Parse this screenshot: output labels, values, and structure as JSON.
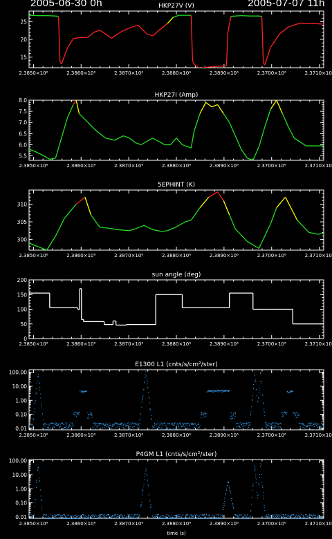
{
  "header": {
    "start_time": "2005-06-30 0h",
    "end_time": "2005-07-07 11h"
  },
  "colors": {
    "background": "#000000",
    "axes": "#ffffff",
    "normal": "#22dd22",
    "warm": "#ffff00",
    "hot": "#ff2222",
    "dots": "#39a8ff"
  },
  "x_axis": {
    "tick_labels": [
      "2.3850×10⁶",
      "2.3860×10⁶",
      "2.3870×10⁶",
      "2.3880×10⁶",
      "2.3890×10⁶",
      "2.3700×10⁶",
      "2.3710×10⁶"
    ],
    "title": "time (s)"
  },
  "chart_data": [
    {
      "type": "line",
      "title": "HKP27V (V)",
      "ylim": [
        12,
        28
      ],
      "yticks": [
        15,
        20,
        25
      ],
      "ytick_labels": [
        "15",
        "20",
        "25"
      ],
      "x": [
        0.0,
        0.03,
        0.06,
        0.09,
        0.1,
        0.105,
        0.11,
        0.13,
        0.15,
        0.17,
        0.2,
        0.22,
        0.24,
        0.26,
        0.28,
        0.3,
        0.32,
        0.35,
        0.37,
        0.4,
        0.42,
        0.44,
        0.47,
        0.49,
        0.51,
        0.53,
        0.55,
        0.555,
        0.56,
        0.58,
        0.61,
        0.64,
        0.66,
        0.67,
        0.675,
        0.685,
        0.72,
        0.75,
        0.78,
        0.79,
        0.795,
        0.8,
        0.82,
        0.85,
        0.88,
        0.92,
        0.96,
        1.0
      ],
      "y": [
        26.8,
        26.7,
        26.7,
        26.6,
        26.5,
        13.8,
        13.0,
        17.5,
        20.2,
        20.5,
        20.6,
        22.0,
        22.6,
        21.5,
        20.3,
        21.5,
        22.5,
        23.5,
        24.0,
        21.5,
        21.0,
        22.5,
        24.5,
        26.3,
        26.8,
        26.8,
        26.8,
        14.0,
        13.0,
        11.8,
        12.2,
        12.4,
        12.5,
        12.6,
        22.0,
        26.5,
        26.7,
        26.6,
        26.6,
        26.5,
        13.5,
        12.8,
        17.8,
        21.5,
        23.5,
        24.6,
        24.5,
        24.3
      ]
    },
    {
      "type": "line",
      "title": "HKP27I (Amp)",
      "ylim": [
        5.3,
        8.0
      ],
      "yticks": [
        5.5,
        6.0,
        6.5,
        7.0,
        7.5,
        8.0
      ],
      "ytick_labels": [
        "5.5",
        "6.0",
        "6.5",
        "7.0",
        "7.5",
        "8.0"
      ],
      "x": [
        0.0,
        0.02,
        0.05,
        0.07,
        0.09,
        0.11,
        0.13,
        0.15,
        0.16,
        0.17,
        0.2,
        0.23,
        0.26,
        0.29,
        0.32,
        0.34,
        0.36,
        0.38,
        0.4,
        0.42,
        0.44,
        0.46,
        0.48,
        0.5,
        0.52,
        0.54,
        0.55,
        0.56,
        0.58,
        0.6,
        0.62,
        0.64,
        0.66,
        0.68,
        0.7,
        0.72,
        0.74,
        0.76,
        0.78,
        0.8,
        0.82,
        0.84,
        0.86,
        0.88,
        0.9,
        0.94,
        0.98,
        1.0
      ],
      "y": [
        5.8,
        5.7,
        5.5,
        5.35,
        5.4,
        6.3,
        7.2,
        7.8,
        8.0,
        7.4,
        7.0,
        6.6,
        6.3,
        6.2,
        6.4,
        6.3,
        6.1,
        6.0,
        6.15,
        6.3,
        6.15,
        6.0,
        6.0,
        6.3,
        6.0,
        5.9,
        5.85,
        6.6,
        7.4,
        7.9,
        7.7,
        7.8,
        7.4,
        7.0,
        6.4,
        5.8,
        5.4,
        5.3,
        5.9,
        6.8,
        7.6,
        8.0,
        7.4,
        6.8,
        6.3,
        5.95,
        5.95,
        5.95
      ]
    },
    {
      "type": "line",
      "title": "5EPHINT (K)",
      "ylim": [
        297,
        314
      ],
      "yticks": [
        300,
        305,
        310
      ],
      "ytick_labels": [
        "300",
        "305",
        "310"
      ],
      "x": [
        0.0,
        0.03,
        0.06,
        0.09,
        0.12,
        0.16,
        0.19,
        0.21,
        0.24,
        0.27,
        0.3,
        0.34,
        0.36,
        0.39,
        0.42,
        0.45,
        0.47,
        0.5,
        0.53,
        0.55,
        0.58,
        0.61,
        0.64,
        0.66,
        0.68,
        0.7,
        0.74,
        0.78,
        0.82,
        0.84,
        0.87,
        0.91,
        0.95,
        0.98,
        1.0
      ],
      "y": [
        299,
        298,
        297,
        301,
        306,
        310,
        312,
        307,
        303.5,
        303.2,
        302.8,
        302.5,
        303.0,
        304.0,
        302.8,
        302.3,
        302.5,
        303.6,
        305.0,
        305.5,
        309.0,
        312.0,
        313.5,
        311.0,
        307.0,
        303.0,
        299.5,
        297.5,
        304.5,
        309.0,
        312.0,
        305.5,
        302.0,
        301.5,
        301.8
      ]
    },
    {
      "type": "line",
      "title": "sun angle (deg)",
      "ylim": [
        0,
        200
      ],
      "yticks": [
        0,
        50,
        100,
        150,
        200
      ],
      "ytick_labels": [
        "0",
        "50",
        "100",
        "150",
        "200"
      ],
      "x": [
        0.0,
        0.07,
        0.07,
        0.165,
        0.165,
        0.172,
        0.172,
        0.178,
        0.178,
        0.185,
        0.185,
        0.255,
        0.255,
        0.285,
        0.285,
        0.295,
        0.295,
        0.33,
        0.33,
        0.43,
        0.43,
        0.52,
        0.52,
        0.58,
        0.58,
        0.68,
        0.68,
        0.76,
        0.76,
        0.82,
        0.82,
        0.895,
        0.895,
        1.0
      ],
      "y": [
        155,
        155,
        105,
        105,
        100,
        100,
        170,
        170,
        65,
        65,
        58,
        58,
        48,
        48,
        60,
        60,
        46,
        46,
        48,
        48,
        150,
        150,
        105,
        105,
        105,
        105,
        155,
        155,
        100,
        100,
        100,
        100,
        50,
        50
      ]
    },
    {
      "type": "scatter",
      "title": "E1300 L1 (cnts/s/cm²/ster)",
      "yscale": "log",
      "ylim": [
        0.008,
        150
      ],
      "yticks": [
        0.01,
        0.1,
        1,
        10,
        100
      ],
      "ytick_labels": [
        "0.01",
        "0.10",
        "1.00",
        "10.00",
        "100.00"
      ],
      "bursts": [
        {
          "x": 0.03,
          "peak": 100,
          "width": 0.018
        },
        {
          "x": 0.395,
          "peak": 120,
          "width": 0.022
        },
        {
          "x": 0.765,
          "peak": 80,
          "width": 0.018
        },
        {
          "x": 0.785,
          "peak": 100,
          "width": 0.016
        }
      ],
      "plateaus": [
        {
          "x0": 0.17,
          "x1": 0.195,
          "level": 4.5
        },
        {
          "x0": 0.6,
          "x1": 0.68,
          "level": 5.0
        },
        {
          "x0": 0.875,
          "x1": 0.895,
          "level": 4.5
        }
      ],
      "floor": 0.015
    },
    {
      "type": "scatter",
      "title": "P4GM L1 (cnts/s/cm²/ster)",
      "yscale": "log",
      "ylim": [
        0.008,
        120
      ],
      "yticks": [
        0.01,
        0.1,
        1,
        10,
        100
      ],
      "ytick_labels": [
        "0.01",
        "0.10",
        "1.00",
        "10.00",
        "100.00"
      ],
      "bursts": [
        {
          "x": 0.03,
          "peak": 50,
          "width": 0.014
        },
        {
          "x": 0.395,
          "peak": 30,
          "width": 0.02
        },
        {
          "x": 0.675,
          "peak": 5,
          "width": 0.02
        },
        {
          "x": 0.765,
          "peak": 60,
          "width": 0.014
        },
        {
          "x": 0.785,
          "peak": 70,
          "width": 0.014
        }
      ],
      "plateaus": [],
      "floor": 0.009
    }
  ]
}
